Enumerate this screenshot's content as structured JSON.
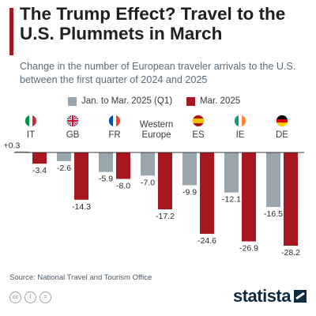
{
  "header": {
    "title": "The Trump Effect? Travel to the U.S. Plummets in March",
    "subtitle": "Change in the number of European traveler arrivals to the U.S. between the first quarter of 2024 and 2025"
  },
  "colors": {
    "accent": "#a8161f",
    "series_q1": "#9aa6ae",
    "series_march": "#a8161f",
    "flag_it": [
      "#009246",
      "#ffffff",
      "#ce2b37"
    ],
    "flag_fr": [
      "#0055a4",
      "#ffffff",
      "#ef4135"
    ],
    "flag_ie": [
      "#169b62",
      "#ffffff",
      "#ff883e"
    ],
    "flag_de": [
      "#000000",
      "#dd0000",
      "#ffce00"
    ],
    "flag_es": [
      "#aa151b",
      "#f1bf00",
      "#aa151b"
    ]
  },
  "chart_data": {
    "type": "bar",
    "categories": [
      "IT",
      "GB",
      "FR",
      "Western Europe",
      "ES",
      "IE",
      "DE"
    ],
    "category_lines": [
      [
        "IT"
      ],
      [
        "GB"
      ],
      [
        "FR"
      ],
      [
        "Western",
        "Europe"
      ],
      [
        "ES"
      ],
      [
        "IE"
      ],
      [
        "DE"
      ]
    ],
    "flags": [
      "it-flag-icon",
      "uk-flag-icon",
      "fr-flag-icon",
      "",
      "es-flag-icon",
      "ie-flag-icon",
      "de-flag-icon"
    ],
    "series": [
      {
        "name": "Jan. to Mar. 2025 (Q1)",
        "values": [
          0.3,
          -2.6,
          -5.9,
          -7.0,
          -9.9,
          -12.1,
          -16.5
        ],
        "labels": [
          "+0.3",
          "-2.6",
          "-5.9",
          "-7.0",
          "-9.9",
          "-12.1",
          "-16.5"
        ]
      },
      {
        "name": "Mar. 2025",
        "values": [
          -3.4,
          -14.3,
          -8.0,
          -17.2,
          -24.6,
          -26.9,
          -28.2
        ],
        "labels": [
          "-3.4",
          "-14.3",
          "-8.0",
          "-17.2",
          "-24.6",
          "-26.9",
          "-28.2"
        ]
      }
    ],
    "ylim": [
      -28.2,
      0.3
    ],
    "grid": false,
    "legend_position": "top"
  },
  "footer": {
    "source": "Source: National Travel and Tourism Office",
    "logo": "statista",
    "license_icons": [
      "cc-icon",
      "by-icon",
      "equals-icon"
    ]
  }
}
